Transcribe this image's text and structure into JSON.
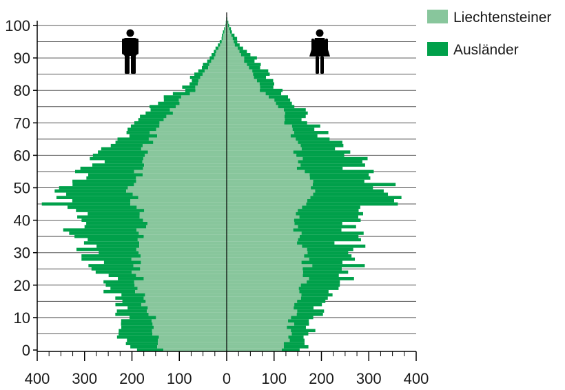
{
  "chart_data": {
    "type": "bar",
    "orientation": "population-pyramid",
    "title": "",
    "xlabel": "",
    "ylabel": "",
    "x_ticks": [
      "400",
      "300",
      "200",
      "100",
      "0",
      "100",
      "200",
      "300",
      "400"
    ],
    "y_ticks": [
      "0",
      "10",
      "20",
      "30",
      "40",
      "50",
      "60",
      "70",
      "80",
      "90",
      "100"
    ],
    "xlim": [
      -400,
      400
    ],
    "ylim": [
      0,
      105
    ],
    "grid": "horizontal",
    "legend_position": "top-right",
    "sides": {
      "left": "male-icon",
      "right": "female-icon"
    },
    "colors": {
      "Liechtensteiner": "#88c69c",
      "Ausländer": "#00a04a",
      "axis": "#000000",
      "grid": "#555555"
    },
    "series": [
      {
        "name": "Liechtensteiner"
      },
      {
        "name": "Ausländer"
      }
    ],
    "anchors": {
      "age": [
        0,
        5,
        10,
        15,
        20,
        25,
        30,
        35,
        40,
        45,
        48,
        52,
        55,
        58,
        62,
        65,
        70,
        75,
        78,
        80,
        85,
        90,
        95,
        100,
        103
      ],
      "male_liechtensteiner": [
        140,
        150,
        160,
        175,
        185,
        190,
        190,
        185,
        170,
        195,
        200,
        195,
        185,
        175,
        170,
        160,
        140,
        110,
        90,
        70,
        50,
        28,
        10,
        2,
        0
      ],
      "male_auslaender": [
        75,
        70,
        60,
        45,
        60,
        85,
        115,
        130,
        135,
        150,
        130,
        140,
        115,
        95,
        85,
        60,
        50,
        45,
        35,
        25,
        15,
        8,
        4,
        1,
        0
      ],
      "female_liechtensteiner": [
        120,
        130,
        140,
        155,
        165,
        170,
        165,
        150,
        145,
        170,
        185,
        180,
        160,
        150,
        150,
        140,
        130,
        110,
        90,
        75,
        55,
        35,
        14,
        3,
        0
      ],
      "female_auslaender": [
        45,
        40,
        45,
        65,
        70,
        85,
        100,
        115,
        120,
        160,
        180,
        145,
        140,
        115,
        95,
        70,
        45,
        40,
        40,
        40,
        30,
        22,
        10,
        2,
        0
      ]
    }
  },
  "legend": {
    "items": [
      {
        "label": "Liechtensteiner",
        "color": "#88c69c"
      },
      {
        "label": "Ausländer",
        "color": "#00a04a"
      }
    ]
  },
  "icons": {
    "left": "male-icon",
    "right": "female-icon"
  }
}
